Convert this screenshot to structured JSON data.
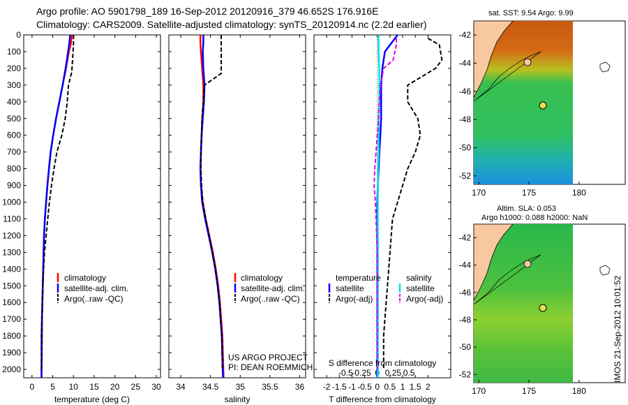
{
  "header": {
    "title_line1": "Argo profile: AO 5901798_189 16-Sep-2012 20120916_379 46.652S 176.916E",
    "title_line2": "Climatology: CARS2009. Satellite-adjusted climatology: synTS_20120914.nc (2.2d earlier)"
  },
  "colors": {
    "climatology": "#ff0000",
    "satellite": "#0000ff",
    "argo": "#000000",
    "sat_salinity": "#00e5e5",
    "argo_salinity_adj": "#e000e0",
    "land": "#f8c8a0"
  },
  "chart_data": [
    {
      "type": "line",
      "panel": "temperature",
      "xlabel": "temperature (deg C)",
      "xticks": [
        "0",
        "5",
        "10",
        "15",
        "20",
        "25",
        "30"
      ],
      "xlim": [
        -2,
        31
      ],
      "ylim": [
        2050,
        0
      ],
      "yticks": [
        "0",
        "100",
        "200",
        "300",
        "400",
        "500",
        "600",
        "700",
        "800",
        "900",
        "1000",
        "1100",
        "1200",
        "1300",
        "1400",
        "1500",
        "1600",
        "1700",
        "1800",
        "1900",
        "2000"
      ],
      "legend": [
        "climatology",
        "satellite-adj. clim.",
        "Argo(..raw -QC)"
      ],
      "series": [
        {
          "name": "climatology",
          "x": [
            9.6,
            9.4,
            8.9,
            8.2,
            7.4,
            6.6,
            5.8,
            5.1,
            4.5,
            4.1,
            3.7,
            3.4,
            3.1,
            2.9,
            2.8,
            2.7,
            2.6,
            2.5,
            2.4,
            2.4,
            2.3
          ],
          "y": [
            0,
            50,
            100,
            200,
            300,
            400,
            500,
            600,
            700,
            800,
            900,
            1000,
            1100,
            1200,
            1300,
            1400,
            1500,
            1600,
            1700,
            1800,
            2050
          ]
        },
        {
          "name": "satellite-adj. clim.",
          "x": [
            9.2,
            9.0,
            8.7,
            8.1,
            7.4,
            6.6,
            5.8,
            5.1,
            4.5,
            4.1,
            3.7,
            3.4,
            3.1,
            2.9,
            2.8,
            2.7,
            2.6,
            2.5,
            2.4,
            2.3,
            2.3
          ],
          "y": [
            0,
            50,
            100,
            200,
            300,
            400,
            500,
            600,
            700,
            800,
            900,
            1000,
            1100,
            1200,
            1300,
            1400,
            1500,
            1600,
            1700,
            1800,
            2050
          ]
        },
        {
          "name": "Argo(..raw -QC)",
          "x": [
            10.0,
            10.0,
            9.9,
            9.6,
            8.8,
            8.5,
            8.0,
            7.2,
            6.0,
            5.3,
            4.7,
            4.2,
            3.8,
            3.4,
            3.0,
            2.8,
            2.6,
            2.5,
            2.4,
            2.4,
            2.3
          ],
          "y": [
            0,
            50,
            100,
            220,
            300,
            400,
            500,
            600,
            700,
            800,
            900,
            1000,
            1100,
            1200,
            1300,
            1400,
            1500,
            1600,
            1700,
            1800,
            2000
          ]
        }
      ]
    },
    {
      "type": "line",
      "panel": "salinity",
      "xlabel": "salinity",
      "xticks": [
        "34",
        "34.5",
        "35",
        "35.5",
        "36"
      ],
      "xlim": [
        33.8,
        36.1
      ],
      "ylim": [
        2050,
        0
      ],
      "legend": [
        "climatology",
        "satellite-adj. clim.",
        "Argo(..raw -QC)"
      ],
      "series": [
        {
          "name": "climatology",
          "x": [
            34.33,
            34.33,
            34.34,
            34.36,
            34.38,
            34.38,
            34.36,
            34.35,
            34.34,
            34.33,
            34.34,
            34.37,
            34.42,
            34.48,
            34.54,
            34.59,
            34.63,
            34.66,
            34.68,
            34.7,
            34.72
          ],
          "y": [
            0,
            50,
            100,
            200,
            300,
            400,
            500,
            600,
            700,
            800,
            900,
            1000,
            1100,
            1200,
            1300,
            1400,
            1500,
            1600,
            1700,
            1800,
            2050
          ]
        },
        {
          "name": "satellite-adj. clim.",
          "x": [
            34.38,
            34.38,
            34.37,
            34.38,
            34.4,
            34.39,
            34.37,
            34.35,
            34.34,
            34.33,
            34.34,
            34.36,
            34.41,
            34.47,
            34.53,
            34.58,
            34.62,
            34.65,
            34.67,
            34.69,
            34.71
          ],
          "y": [
            0,
            50,
            100,
            200,
            300,
            400,
            500,
            600,
            700,
            800,
            900,
            1000,
            1100,
            1200,
            1300,
            1400,
            1500,
            1600,
            1700,
            1800,
            2050
          ]
        },
        {
          "name": "Argo(..raw -QC)",
          "x": [
            34.68,
            34.68,
            34.68,
            34.68,
            34.4,
            34.38,
            34.36,
            34.35,
            34.34,
            34.34,
            34.35,
            34.37,
            34.42,
            34.48,
            34.53,
            34.58,
            34.62,
            34.65,
            34.67,
            34.69,
            34.7
          ],
          "y": [
            0,
            50,
            100,
            230,
            300,
            400,
            500,
            600,
            700,
            800,
            900,
            1000,
            1100,
            1200,
            1300,
            1400,
            1500,
            1600,
            1700,
            1800,
            2000
          ]
        }
      ],
      "annotation": [
        "US ARGO PROJECT",
        "PI: DEAN ROEMMICH"
      ]
    },
    {
      "type": "line",
      "panel": "difference",
      "xlabel": "T difference from climatology",
      "xlabel_top": "S difference from climatology",
      "xticks": [
        "-2",
        "-1.5",
        "-1",
        "-0.5",
        "0",
        "0.5",
        "1",
        "1.5",
        "2"
      ],
      "xticks_s": [
        "-0.5",
        "-0.25",
        "0",
        "0.25",
        "0.5"
      ],
      "xlim": [
        -2.5,
        2.9
      ],
      "ylim": [
        2050,
        0
      ],
      "legend_headers": [
        "temperature",
        "salinity"
      ],
      "legend": [
        "satellite",
        "Argo(-adj)",
        "satellite",
        "Argo(-adj)"
      ],
      "series": [
        {
          "name": "satellite",
          "x": [
            0.8,
            0.55,
            0.3,
            0.2,
            0.15,
            0.15,
            0.15,
            0.12,
            0.08,
            0.05,
            0.02,
            0.0,
            0.0,
            0.0,
            0.0,
            0.0,
            0.0,
            0.0,
            0.0,
            0.0,
            0.0
          ],
          "y": [
            0,
            50,
            100,
            200,
            300,
            400,
            500,
            600,
            700,
            800,
            900,
            1000,
            1100,
            1200,
            1300,
            1400,
            1500,
            1600,
            1700,
            1800,
            2050
          ]
        },
        {
          "name": "Argo(-adj)",
          "x": [
            2.0,
            2.45,
            2.55,
            2.3,
            1.2,
            1.2,
            1.6,
            1.7,
            1.5,
            1.2,
            1.0,
            0.8,
            0.6,
            0.55,
            0.5,
            0.45,
            0.4,
            0.35,
            0.3,
            0.25,
            0.25
          ],
          "y": [
            20,
            60,
            150,
            200,
            300,
            400,
            500,
            600,
            700,
            800,
            900,
            1000,
            1100,
            1200,
            1300,
            1400,
            1500,
            1600,
            1700,
            1800,
            2000
          ]
        },
        {
          "name": "satellite",
          "x": [
            0.02,
            0.02,
            0.02,
            0.03,
            0.03,
            0.03,
            0.02,
            0.02,
            0.02,
            0.01,
            0.01,
            0.01,
            0.01,
            0.01,
            0.01,
            0.01,
            0.01,
            0.01,
            0.01,
            0.01,
            0.01
          ],
          "y": [
            0,
            50,
            100,
            200,
            300,
            400,
            500,
            600,
            700,
            800,
            900,
            1000,
            1100,
            1200,
            1300,
            1400,
            1500,
            1600,
            1700,
            1800,
            2050
          ]
        },
        {
          "name": "Argo(-adj)",
          "x": [
            0.3,
            0.3,
            0.25,
            0.1,
            0.05,
            0.03,
            0.02,
            0.0,
            -0.02,
            -0.04,
            -0.05,
            -0.03,
            -0.02,
            -0.01,
            0.0,
            0.0,
            0.0,
            0.0,
            0.0,
            0.0,
            0.0
          ],
          "y": [
            20,
            60,
            150,
            200,
            300,
            400,
            500,
            600,
            700,
            800,
            900,
            1000,
            1100,
            1200,
            1300,
            1400,
            1500,
            1600,
            1700,
            1800,
            2000
          ]
        }
      ]
    }
  ],
  "maps": {
    "sst": {
      "label": "sat. SST: 9.54 Argo: 9.99",
      "lat_ticks": [
        "-42",
        "-44",
        "-46",
        "-48",
        "-50",
        "-52"
      ],
      "lon_ticks": [
        "170",
        "175",
        "180"
      ]
    },
    "sla": {
      "label_line1": "Altim. SLA: 0.053",
      "label_line2": "Argo h1000: 0.088 h2000: NaN",
      "lat_ticks": [
        "-42",
        "-44",
        "-46",
        "-48",
        "-50",
        "-52"
      ],
      "lon_ticks": [
        "170",
        "175",
        "180"
      ]
    }
  },
  "stamp": "IMOS 21-Sep-2012 10:01:52"
}
